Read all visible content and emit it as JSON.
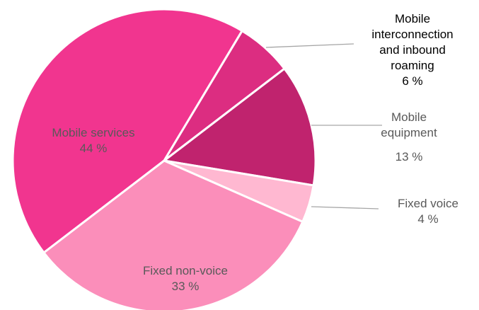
{
  "chart_data": {
    "type": "pie",
    "categories": [
      "Mobile services",
      "Mobile interconnection and inbound roaming",
      "Mobile equipment",
      "Fixed voice",
      "Fixed non-voice"
    ],
    "values": [
      44,
      6,
      13,
      4,
      33
    ],
    "value_labels": [
      "44 %",
      "6 %",
      "13 %",
      "4 %",
      "33 %"
    ],
    "colors": [
      "#f1358f",
      "#dc2d81",
      "#c0236e",
      "#ffb8d1",
      "#fb8eba"
    ]
  }
}
